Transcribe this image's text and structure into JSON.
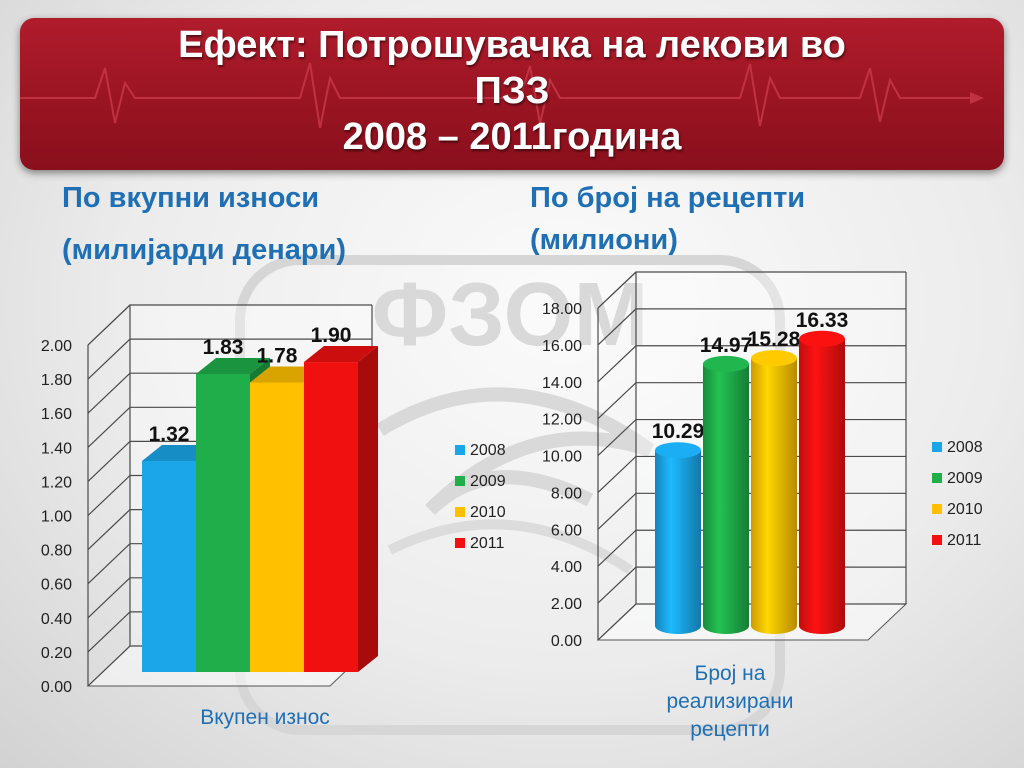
{
  "banner": {
    "title_line1": "Ефект: Потрошувачка на лекови во",
    "title_line2": "ПЗЗ",
    "title_line3": "2008 – 2011година",
    "color": "#9a1422"
  },
  "watermark_text": "ФЗОМ",
  "left": {
    "heading_line1": "По вкупни износи",
    "heading_line2": "(милијарди денари)",
    "axis_title": "Вкупен износ"
  },
  "right": {
    "heading_line1": "По број на рецепти",
    "heading_line2": "(милиони)",
    "axis_title_line1": "Број на",
    "axis_title_line2": "реализирани",
    "axis_title_line3": "рецепти"
  },
  "chart_data": [
    {
      "type": "bar",
      "title": "По вкупни износи (милијарди денари)",
      "xlabel": "Вкупен износ",
      "ylabel": "",
      "ylim": [
        0,
        2
      ],
      "yticks": [
        "0.00",
        "0.20",
        "0.40",
        "0.60",
        "0.80",
        "1.00",
        "1.20",
        "1.40",
        "1.60",
        "1.80",
        "2.00"
      ],
      "series": [
        {
          "name": "2008",
          "values": [
            1.32
          ],
          "label": "1.32",
          "color": "#1aa6e8"
        },
        {
          "name": "2009",
          "values": [
            1.83
          ],
          "label": "1.83",
          "color": "#1fae4a"
        },
        {
          "name": "2010",
          "values": [
            1.78
          ],
          "label": "1.78",
          "color": "#ffc000"
        },
        {
          "name": "2011",
          "values": [
            1.9
          ],
          "label": "1.90",
          "color": "#f01010"
        }
      ],
      "legend": "right",
      "grid": true
    },
    {
      "type": "bar",
      "title": "По број на рецепти (милиони)",
      "xlabel": "Број на реализирани рецепти",
      "ylabel": "",
      "ylim": [
        0,
        18
      ],
      "yticks": [
        "0.00",
        "2.00",
        "4.00",
        "6.00",
        "8.00",
        "10.00",
        "12.00",
        "14.00",
        "16.00",
        "18.00"
      ],
      "series": [
        {
          "name": "2008",
          "values": [
            10.29
          ],
          "label": "10.29",
          "color": "#1aa6e8"
        },
        {
          "name": "2009",
          "values": [
            14.97
          ],
          "label": "14.97",
          "color": "#1fae4a"
        },
        {
          "name": "2010",
          "values": [
            15.28
          ],
          "label": "15.28",
          "color": "#ffc000"
        },
        {
          "name": "2011",
          "values": [
            16.33
          ],
          "label": "16.33",
          "color": "#f01010"
        }
      ],
      "legend": "right",
      "grid": true
    }
  ]
}
